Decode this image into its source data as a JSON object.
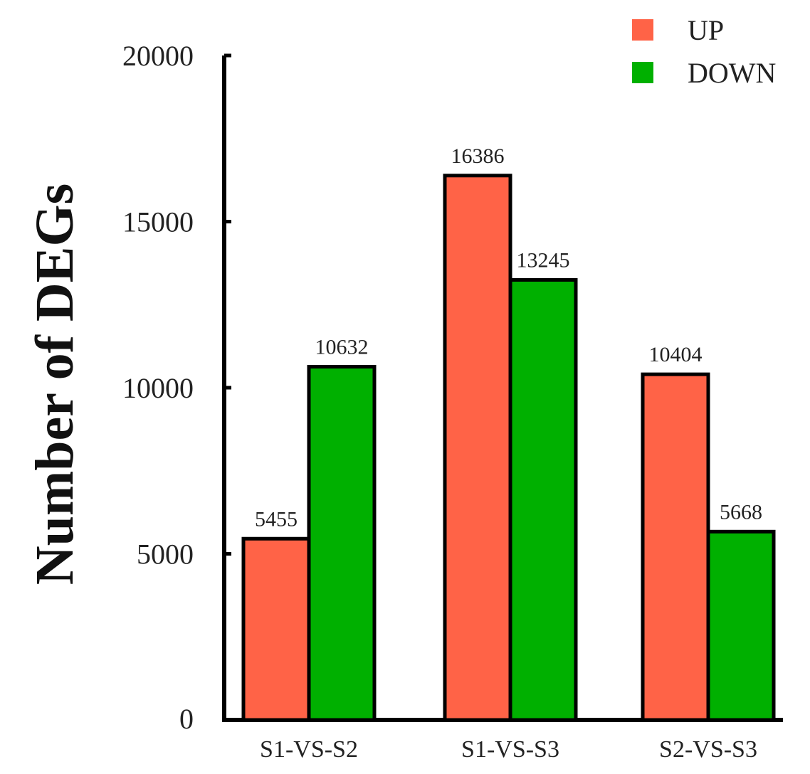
{
  "chart_data": {
    "type": "bar",
    "title": "",
    "xlabel": "",
    "ylabel": "Number of DEGs",
    "ylim": [
      0,
      20000
    ],
    "yticks": [
      0,
      5000,
      10000,
      15000,
      20000
    ],
    "grid": false,
    "legend_position": "top-right",
    "categories": [
      "S1-VS-S2",
      "S1-VS-S3",
      "S2-VS-S3"
    ],
    "series": [
      {
        "name": "UP",
        "color": "#ff6347",
        "values": [
          5455,
          16386,
          10404
        ]
      },
      {
        "name": "DOWN",
        "color": "#00b000",
        "values": [
          10632,
          13245,
          5668
        ]
      }
    ]
  }
}
